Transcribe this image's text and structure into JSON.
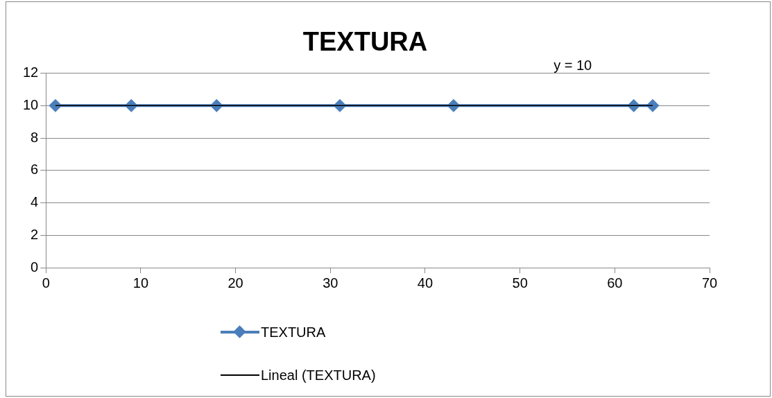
{
  "chart_data": {
    "type": "line",
    "title": "TEXTURA",
    "x": [
      1,
      9,
      18,
      31,
      43,
      62,
      64
    ],
    "series": [
      {
        "name": "TEXTURA",
        "color": "#4a7ebb",
        "values": [
          10,
          10,
          10,
          10,
          10,
          10,
          10
        ],
        "marker": "diamond"
      },
      {
        "name": "Lineal (TEXTURA)",
        "type": "line",
        "color": "#000000",
        "x": [
          1,
          64
        ],
        "values": [
          10,
          10
        ],
        "marker": "none"
      }
    ],
    "xlim": [
      0,
      70
    ],
    "xticks": [
      0,
      10,
      20,
      30,
      40,
      50,
      60,
      70
    ],
    "ylim": [
      0,
      12
    ],
    "yticks": [
      0,
      2,
      4,
      6,
      8,
      10,
      12
    ],
    "annotations": [
      "y = 10"
    ],
    "grid": "y",
    "legend": "bottom"
  }
}
